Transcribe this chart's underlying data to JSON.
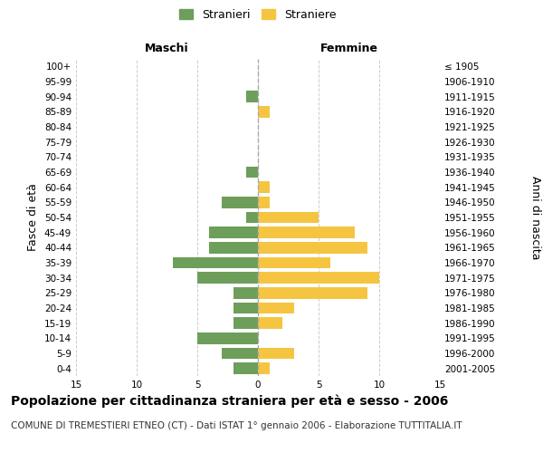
{
  "age_groups": [
    "100+",
    "95-99",
    "90-94",
    "85-89",
    "80-84",
    "75-79",
    "70-74",
    "65-69",
    "60-64",
    "55-59",
    "50-54",
    "45-49",
    "40-44",
    "35-39",
    "30-34",
    "25-29",
    "20-24",
    "15-19",
    "10-14",
    "5-9",
    "0-4"
  ],
  "birth_years": [
    "≤ 1905",
    "1906-1910",
    "1911-1915",
    "1916-1920",
    "1921-1925",
    "1926-1930",
    "1931-1935",
    "1936-1940",
    "1941-1945",
    "1946-1950",
    "1951-1955",
    "1956-1960",
    "1961-1965",
    "1966-1970",
    "1971-1975",
    "1976-1980",
    "1981-1985",
    "1986-1990",
    "1991-1995",
    "1996-2000",
    "2001-2005"
  ],
  "maschi": [
    0,
    0,
    1,
    0,
    0,
    0,
    0,
    1,
    0,
    3,
    1,
    4,
    4,
    7,
    5,
    2,
    2,
    2,
    5,
    3,
    2
  ],
  "femmine": [
    0,
    0,
    0,
    1,
    0,
    0,
    0,
    0,
    1,
    1,
    5,
    8,
    9,
    6,
    10,
    9,
    3,
    2,
    0,
    3,
    1
  ],
  "maschi_color": "#6d9e5a",
  "femmine_color": "#f5c542",
  "bar_height": 0.75,
  "xlim": 15,
  "title": "Popolazione per cittadinanza straniera per età e sesso - 2006",
  "subtitle": "COMUNE DI TREMESTIERI ETNEO (CT) - Dati ISTAT 1° gennaio 2006 - Elaborazione TUTTITALIA.IT",
  "ylabel_left": "Fasce di età",
  "ylabel_right": "Anni di nascita",
  "xlabel_left": "Maschi",
  "xlabel_right": "Femmine",
  "legend_stranieri": "Stranieri",
  "legend_straniere": "Straniere",
  "background_color": "#ffffff",
  "grid_color": "#cccccc",
  "dashed_line_color": "#aaaaaa",
  "title_fontsize": 10,
  "subtitle_fontsize": 7.5,
  "tick_fontsize": 7.5,
  "label_fontsize": 9
}
